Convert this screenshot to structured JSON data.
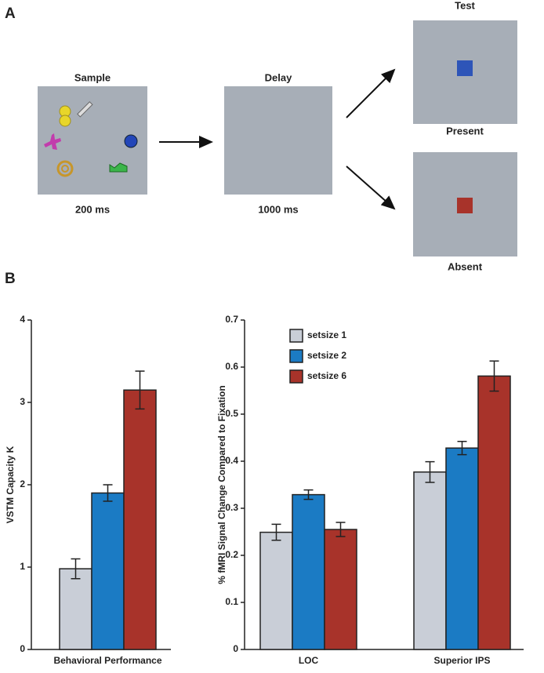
{
  "panel_a": {
    "label": "A",
    "sample": {
      "title": "Sample",
      "duration": "200 ms"
    },
    "delay": {
      "title": "Delay",
      "duration": "1000 ms"
    },
    "test": {
      "title": "Test",
      "present": "Present",
      "absent": "Absent"
    }
  },
  "panel_b_label": "B",
  "chart_data": [
    {
      "type": "bar",
      "ylabel": "VSTM Capacity K",
      "categories": [
        "Behavioral Performance"
      ],
      "series": [
        {
          "color": "#c9ced7",
          "values": [
            0.98
          ],
          "errors": [
            0.12
          ]
        },
        {
          "color": "#1b7bc4",
          "values": [
            1.9
          ],
          "errors": [
            0.1
          ]
        },
        {
          "color": "#a8332a",
          "values": [
            3.15
          ],
          "errors": [
            0.23
          ]
        }
      ],
      "ylim": [
        0,
        4
      ],
      "yticks": [
        0,
        1,
        2,
        3,
        4
      ]
    },
    {
      "type": "bar",
      "ylabel": "% fMRI Signal Change Compared to Fixation",
      "categories": [
        "LOC",
        "Superior IPS"
      ],
      "series": [
        {
          "name": "setsize 1",
          "color": "#c9ced7",
          "values": [
            0.249,
            0.377
          ],
          "errors": [
            0.017,
            0.022
          ]
        },
        {
          "name": "setsize 2",
          "color": "#1b7bc4",
          "values": [
            0.329,
            0.428
          ],
          "errors": [
            0.01,
            0.014
          ]
        },
        {
          "name": "setsize 6",
          "color": "#a8332a",
          "values": [
            0.255,
            0.581
          ],
          "errors": [
            0.015,
            0.032
          ]
        }
      ],
      "ylim": [
        0,
        0.7
      ],
      "yticks": [
        0,
        0.1,
        0.2,
        0.3,
        0.4,
        0.5,
        0.6,
        0.7
      ],
      "legend": "upper left"
    }
  ]
}
